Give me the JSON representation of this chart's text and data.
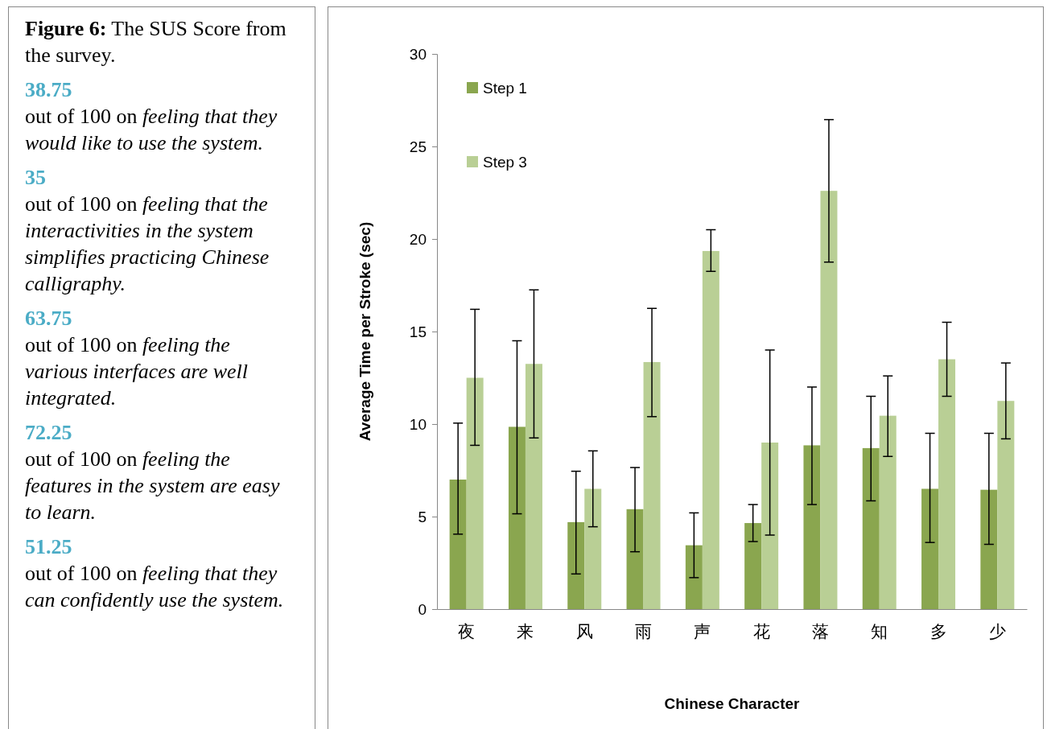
{
  "chart_data": [
    {
      "type": "other",
      "title": "Figure 6:",
      "subtitle": "The SUS Score from the survey.",
      "annotations": [
        "38.75",
        "out of 100 on",
        "feeling that they would like to use the system.",
        "35",
        "out of 100 on",
        "feeling that the interactivities in the system simplifies practicing Chinese calligraphy.",
        "63.75",
        "out of 100 on",
        "feeling the various interfaces are well integrated.",
        "72.25",
        "out of 100 on",
        "feeling the features in the system are easy to learn.",
        "51.25",
        "out of 100 on",
        "feeling that they can confidently use the system."
      ]
    },
    {
      "type": "bar",
      "xlabel": "Chinese Character",
      "ylabel": "Average Time per Stroke (sec)",
      "categories": [
        "夜",
        "来",
        "风",
        "雨",
        "声",
        "花",
        "落",
        "知",
        "多",
        "少"
      ],
      "series": [
        {
          "name": "Step 1",
          "color": "#8aa64f",
          "values": [
            7.0,
            9.85,
            4.7,
            5.4,
            3.45,
            4.65,
            8.85,
            8.7,
            6.5,
            6.45
          ],
          "errors": [
            [
              4.05,
              10.05
            ],
            [
              5.15,
              14.5
            ],
            [
              1.9,
              7.45
            ],
            [
              3.1,
              7.65
            ],
            [
              1.7,
              5.2
            ],
            [
              3.65,
              5.65
            ],
            [
              5.65,
              12.0
            ],
            [
              5.85,
              11.5
            ],
            [
              3.6,
              9.5
            ],
            [
              3.5,
              9.5
            ]
          ]
        },
        {
          "name": "Step 3",
          "color": "#b9cf95",
          "values": [
            12.5,
            13.25,
            6.5,
            13.35,
            19.35,
            9.0,
            22.6,
            10.45,
            13.5,
            11.25
          ],
          "errors": [
            [
              8.85,
              16.2
            ],
            [
              9.25,
              17.25
            ],
            [
              4.45,
              8.55
            ],
            [
              10.4,
              16.25
            ],
            [
              18.25,
              20.5
            ],
            [
              4.0,
              14.0
            ],
            [
              18.75,
              26.45
            ],
            [
              8.25,
              12.6
            ],
            [
              11.5,
              15.5
            ],
            [
              9.2,
              13.3
            ]
          ]
        }
      ],
      "ylim": [
        0,
        30
      ],
      "yticks": [
        0,
        5,
        10,
        15,
        20,
        25,
        30
      ],
      "grid": false,
      "legend": "top left"
    }
  ]
}
